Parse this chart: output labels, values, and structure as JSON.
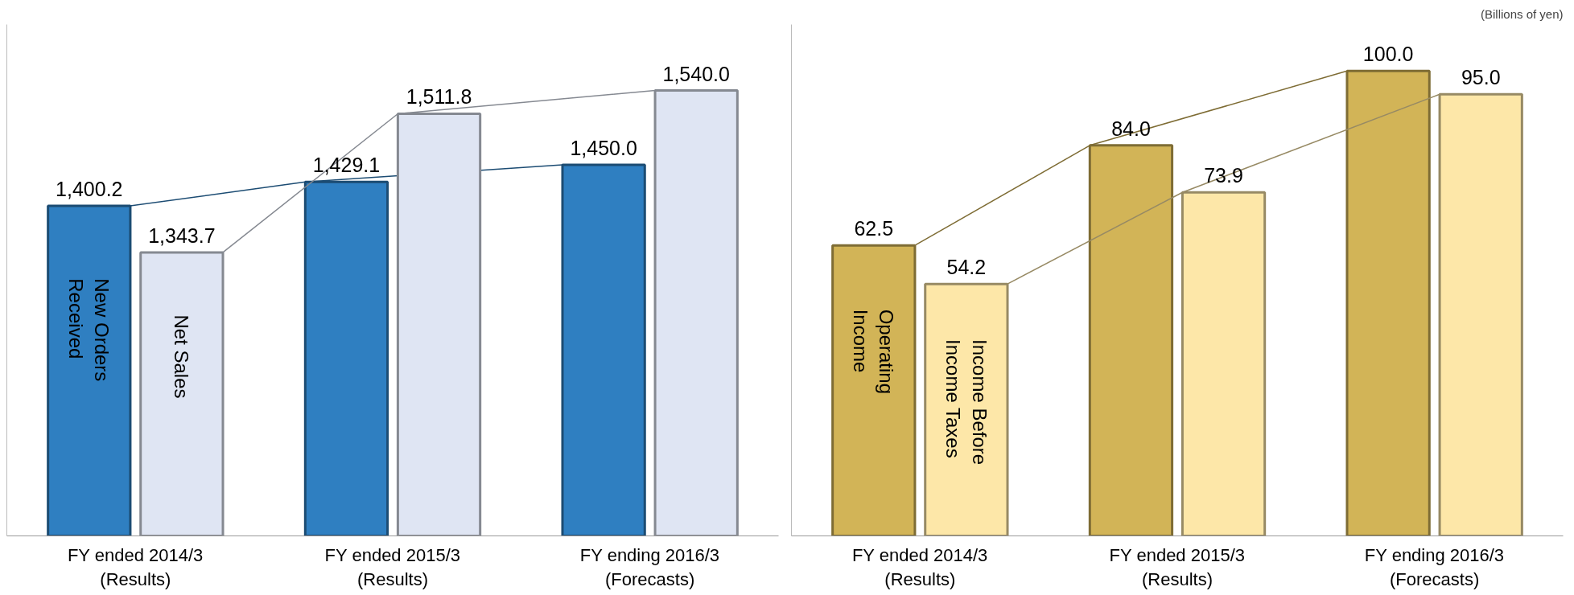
{
  "chart_data": [
    {
      "type": "bar",
      "categories": [
        "FY ended 2014/3\n(Results)",
        "FY ended 2015/3\n(Results)",
        "FY ending 2016/3\n(Forecasts)"
      ],
      "ylim": [
        1000,
        1620
      ],
      "tick_labels": "x",
      "grid": false,
      "series": [
        {
          "name": "New Orders\nReceived",
          "color": "#2f7fc1",
          "values": [
            1400.2,
            1429.1,
            1450.0
          ],
          "value_labels": [
            "1,400.2",
            "1,429.1",
            "1,450.0"
          ]
        },
        {
          "name": "Net Sales",
          "color": "#dfe5f3",
          "values": [
            1343.7,
            1511.8,
            1540.0
          ],
          "value_labels": [
            "1,343.7",
            "1,511.8",
            "1,540.0"
          ]
        }
      ]
    },
    {
      "type": "bar",
      "categories": [
        "FY ended 2014/3\n(Results)",
        "FY ended 2015/3\n(Results)",
        "FY ending 2016/3\n(Forecasts)"
      ],
      "ylim": [
        0,
        110
      ],
      "tick_labels": "x",
      "grid": false,
      "annotations": [
        "(Billions of yen)"
      ],
      "series": [
        {
          "name": "Operating\nIncome",
          "color": "#d2b457",
          "values": [
            62.5,
            84.0,
            100.0
          ],
          "value_labels": [
            "62.5",
            "84.0",
            "100.0"
          ]
        },
        {
          "name": "Income Before\nIncome Taxes",
          "color": "#fde7a8",
          "values": [
            54.2,
            73.9,
            95.0
          ],
          "value_labels": [
            "54.2",
            "73.9",
            "95.0"
          ]
        }
      ]
    }
  ]
}
